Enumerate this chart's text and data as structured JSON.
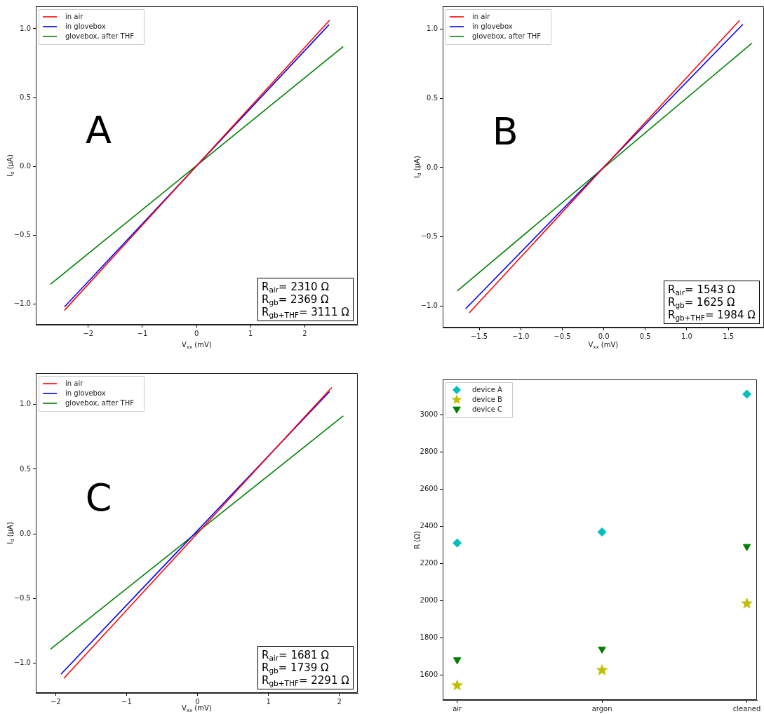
{
  "chart_data": [
    {
      "type": "line",
      "xlabel": "V$_{xx}$ (mV)",
      "ylabel": "I$_{d}$ (μA)",
      "legend": "top left",
      "series": [
        {
          "name": "in air",
          "color": "#ff0000",
          "x": [
            -2.44,
            2.46
          ],
          "values": [
            -1.047,
            1.062
          ]
        },
        {
          "name": "in glovebox",
          "color": "#0000ff",
          "x": [
            -2.44,
            2.45
          ],
          "values": [
            -1.022,
            1.03
          ]
        },
        {
          "name": "glovebox, after THF",
          "color": "#008000",
          "x": [
            -2.7,
            2.71
          ],
          "values": [
            -0.858,
            0.871
          ]
        }
      ],
      "xlim": [
        -2.97,
        2.98
      ],
      "ylim": [
        -1.152,
        1.163
      ],
      "xticks": [
        {
          "value": -2,
          "label": "−2"
        },
        {
          "value": -1,
          "label": "−1"
        },
        {
          "value": 0,
          "label": "0"
        },
        {
          "value": 1,
          "label": "1"
        },
        {
          "value": 2,
          "label": "2"
        }
      ],
      "yticks": [
        {
          "value": -1,
          "label": "−1.0"
        },
        {
          "value": -0.5,
          "label": "−0.5"
        },
        {
          "value": 0,
          "label": "0.0"
        },
        {
          "value": 0.5,
          "label": "0.5"
        },
        {
          "value": 1,
          "label": "1.0"
        }
      ],
      "annotations": [
        "A",
        "R$_{air}$= 2310 Ω",
        "R$_{gb}$= 2369 Ω",
        "R$_{gb+THF}$= 3111 Ω"
      ]
    },
    {
      "type": "line",
      "xlabel": "V$_{xx}$ (mV)",
      "ylabel": "I$_{d}$ (μA)",
      "legend": "top left",
      "series": [
        {
          "name": "in air",
          "color": "#ff0000",
          "x": [
            -1.62,
            1.636
          ],
          "values": [
            -1.047,
            1.062
          ]
        },
        {
          "name": "in glovebox",
          "color": "#0000ff",
          "x": [
            -1.664,
            1.675
          ],
          "values": [
            -1.018,
            1.033
          ]
        },
        {
          "name": "glovebox, after THF",
          "color": "#008000",
          "x": [
            -1.765,
            1.784
          ],
          "values": [
            -0.889,
            0.897
          ]
        }
      ],
      "xlim": [
        -1.94,
        1.93
      ],
      "ylim": [
        -1.153,
        1.163
      ],
      "xticks": [
        {
          "value": -1.5,
          "label": "−1.5"
        },
        {
          "value": -1,
          "label": "−1.0"
        },
        {
          "value": -0.5,
          "label": "−0.5"
        },
        {
          "value": 0,
          "label": "0.0"
        },
        {
          "value": 0.5,
          "label": "0.5"
        },
        {
          "value": 1,
          "label": "1.0"
        },
        {
          "value": 1.5,
          "label": "1.5"
        }
      ],
      "yticks": [
        {
          "value": -1,
          "label": "−1.0"
        },
        {
          "value": -0.5,
          "label": "−0.5"
        },
        {
          "value": 0,
          "label": "0.0"
        },
        {
          "value": 0.5,
          "label": "0.5"
        },
        {
          "value": 1,
          "label": "1.0"
        }
      ],
      "annotations": [
        "B",
        "R$_{air}$= 1543 Ω",
        "R$_{gb}$= 1625 Ω",
        "R$_{gb+THF}$= 1984 Ω"
      ]
    },
    {
      "type": "line",
      "xlabel": "V$_{xx}$ (mV)",
      "ylabel": "I$_{d}$ (μA)",
      "legend": "top left",
      "series": [
        {
          "name": "in air",
          "color": "#ff0000",
          "x": [
            -1.883,
            1.892
          ],
          "values": [
            -1.115,
            1.131
          ]
        },
        {
          "name": "in glovebox",
          "color": "#0000ff",
          "x": [
            -1.925,
            1.863
          ],
          "values": [
            -1.084,
            1.1
          ]
        },
        {
          "name": "glovebox, after THF",
          "color": "#008000",
          "x": [
            -2.073,
            2.056
          ],
          "values": [
            -0.891,
            0.912
          ]
        }
      ],
      "xlim": [
        -2.28,
        2.26
      ],
      "ylim": [
        -1.229,
        1.242
      ],
      "xticks": [
        {
          "value": -2,
          "label": "−2"
        },
        {
          "value": -1,
          "label": "−1"
        },
        {
          "value": 0,
          "label": "0"
        },
        {
          "value": 1,
          "label": "1"
        },
        {
          "value": 2,
          "label": "2"
        }
      ],
      "yticks": [
        {
          "value": -1,
          "label": "−1.0"
        },
        {
          "value": -0.5,
          "label": "−0.5"
        },
        {
          "value": 0,
          "label": "0.0"
        },
        {
          "value": 0.5,
          "label": "0.5"
        },
        {
          "value": 1,
          "label": "1.0"
        }
      ],
      "annotations": [
        "C",
        "R$_{air}$= 1681 Ω",
        "R$_{gb}$= 1739 Ω",
        "R$_{gb+THF}$= 2291 Ω"
      ]
    },
    {
      "type": "scatter",
      "ylabel": "R (Ω)",
      "legend": "top left",
      "categories": [
        "air",
        "argon",
        "cleaned"
      ],
      "series": [
        {
          "name": "device A",
          "color": "#00bfbf",
          "marker": "diamond",
          "values": [
            2310,
            2369,
            3111
          ]
        },
        {
          "name": "device B",
          "color": "#bfbf00",
          "marker": "star",
          "values": [
            1543,
            1625,
            1984
          ]
        },
        {
          "name": "device C",
          "color": "#008000",
          "marker": "triangle",
          "values": [
            1681,
            1739,
            2291
          ]
        }
      ],
      "ylim": [
        1465,
        3190
      ],
      "yticks": [
        1600,
        1800,
        2000,
        2200,
        2400,
        2600,
        2800,
        3000
      ]
    }
  ]
}
